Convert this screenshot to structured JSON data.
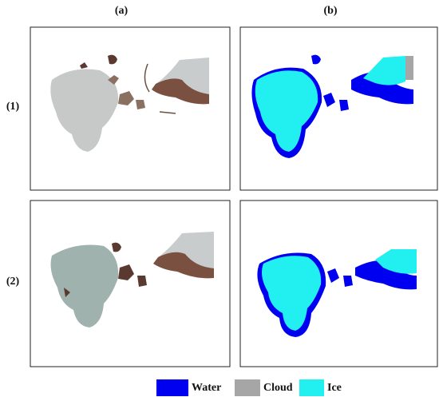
{
  "columns": [
    "(a)",
    "(b)"
  ],
  "rows": [
    "(1)",
    "(2)"
  ],
  "legend": [
    {
      "name": "Water",
      "color": "#0000f0"
    },
    {
      "name": "Cloud",
      "color": "#a6a6a6"
    },
    {
      "name": "Ice",
      "color": "#22f0f0"
    }
  ]
}
